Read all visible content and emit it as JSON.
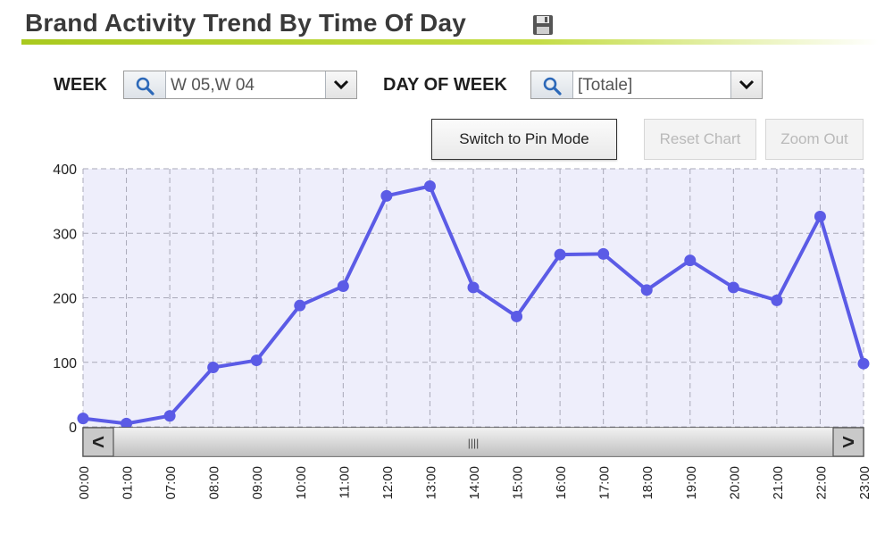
{
  "header": {
    "title": "Brand Activity Trend By Time Of Day",
    "save_icon": "save-disk-icon"
  },
  "filters": {
    "week_label": "WEEK",
    "week_value": "W 05,W 04",
    "day_label": "DAY OF WEEK",
    "day_value": "[Totale]"
  },
  "toolbar": {
    "pin_mode_label": "Switch to Pin Mode",
    "reset_label": "Reset Chart",
    "zoom_out_label": "Zoom Out"
  },
  "scrollbar": {
    "left_arrow": "<",
    "right_arrow": ">",
    "grip": "||||"
  },
  "colors": {
    "line": "#5b5be6",
    "plot_bg": "#eeeefb",
    "accent": "#a9c91e"
  },
  "chart_data": {
    "type": "line",
    "title": "Brand Activity Trend By Time Of Day",
    "xlabel": "",
    "ylabel": "",
    "categories": [
      "00:00",
      "01:00",
      "07:00",
      "08:00",
      "09:00",
      "10:00",
      "11:00",
      "12:00",
      "13:00",
      "14:00",
      "15:00",
      "16:00",
      "17:00",
      "18:00",
      "19:00",
      "20:00",
      "21:00",
      "22:00",
      "23:00"
    ],
    "series": [
      {
        "values": [
          13,
          5,
          17,
          92,
          103,
          188,
          218,
          358,
          373,
          216,
          171,
          267,
          268,
          212,
          258,
          216,
          196,
          326,
          98
        ]
      }
    ],
    "ylim": [
      0,
      400
    ],
    "yticks": [
      "0",
      "100",
      "200",
      "300",
      "400"
    ],
    "grid": true,
    "legend": "none"
  }
}
